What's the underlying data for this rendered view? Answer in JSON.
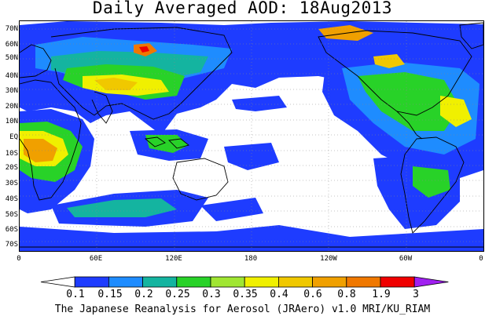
{
  "title": "Daily Averaged AOD: 18Aug2013",
  "footer": "The Japanese Reanalysis for Aerosol (JRAero) v1.0 MRI/KU_RIAM",
  "map": {
    "lat_labels": [
      "70N",
      "60N",
      "50N",
      "40N",
      "30N",
      "20N",
      "10N",
      "EQ",
      "10S",
      "20S",
      "30S",
      "40S",
      "50S",
      "60S",
      "70S"
    ],
    "lon_labels": [
      "0",
      "60E",
      "120E",
      "180",
      "120W",
      "60W",
      "0"
    ],
    "variable": "Aerosol Optical Depth",
    "projection": "equirectangular"
  },
  "colorbar": {
    "labels": [
      "0.1",
      "0.15",
      "0.2",
      "0.25",
      "0.3",
      "0.35",
      "0.4",
      "0.6",
      "0.8",
      "1.9",
      "3"
    ],
    "colors": [
      "#ffffff",
      "#1e3cff",
      "#1e8cff",
      "#14b4a0",
      "#28d228",
      "#a0e632",
      "#f0f000",
      "#f0c800",
      "#f0a000",
      "#f07800",
      "#f00000",
      "#a020f0"
    ]
  }
}
